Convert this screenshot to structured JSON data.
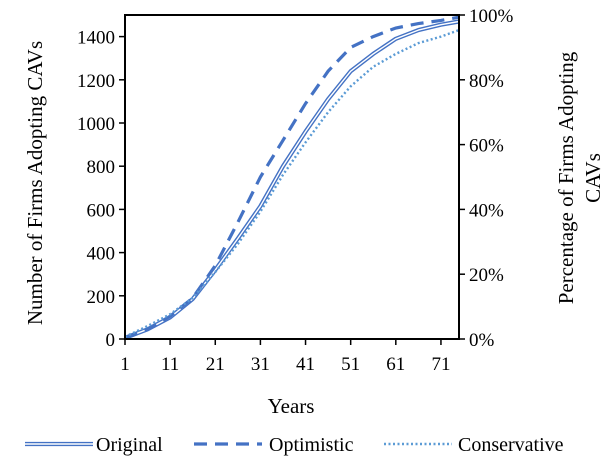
{
  "chart_data": {
    "type": "line",
    "title": "",
    "xlabel": "Years",
    "ylabel": "Number of Firms Adopting CAVs",
    "y2label": [
      "Percentage of Firms Adopting",
      "CAVs"
    ],
    "xlim": [
      1,
      75
    ],
    "ylim": [
      0,
      1500
    ],
    "y2lim": [
      0,
      1
    ],
    "x_ticks": [
      1,
      11,
      21,
      31,
      41,
      51,
      61,
      71
    ],
    "y_ticks": [
      0,
      200,
      400,
      600,
      800,
      1000,
      1200,
      1400
    ],
    "y2_ticks": [
      "0%",
      "20%",
      "40%",
      "60%",
      "80%",
      "100%"
    ],
    "grid": false,
    "legend_position": "bottom",
    "x": [
      1,
      6,
      11,
      16,
      21,
      26,
      31,
      36,
      41,
      46,
      51,
      56,
      61,
      66,
      71,
      75
    ],
    "series": [
      {
        "name": "Original",
        "style": "double",
        "color": "#4472C4",
        "values": [
          5,
          45,
          100,
          185,
          320,
          465,
          615,
          800,
          960,
          1110,
          1240,
          1320,
          1390,
          1430,
          1455,
          1470
        ]
      },
      {
        "name": "Optimistic",
        "style": "dashed",
        "color": "#4472C4",
        "values": [
          5,
          45,
          105,
          190,
          340,
          540,
          750,
          920,
          1090,
          1240,
          1350,
          1400,
          1440,
          1460,
          1475,
          1490
        ]
      },
      {
        "name": "Conservative",
        "style": "dotted",
        "color": "#5B9BD5",
        "values": [
          10,
          60,
          115,
          190,
          310,
          440,
          590,
          760,
          910,
          1050,
          1170,
          1260,
          1320,
          1370,
          1400,
          1430
        ]
      }
    ]
  }
}
